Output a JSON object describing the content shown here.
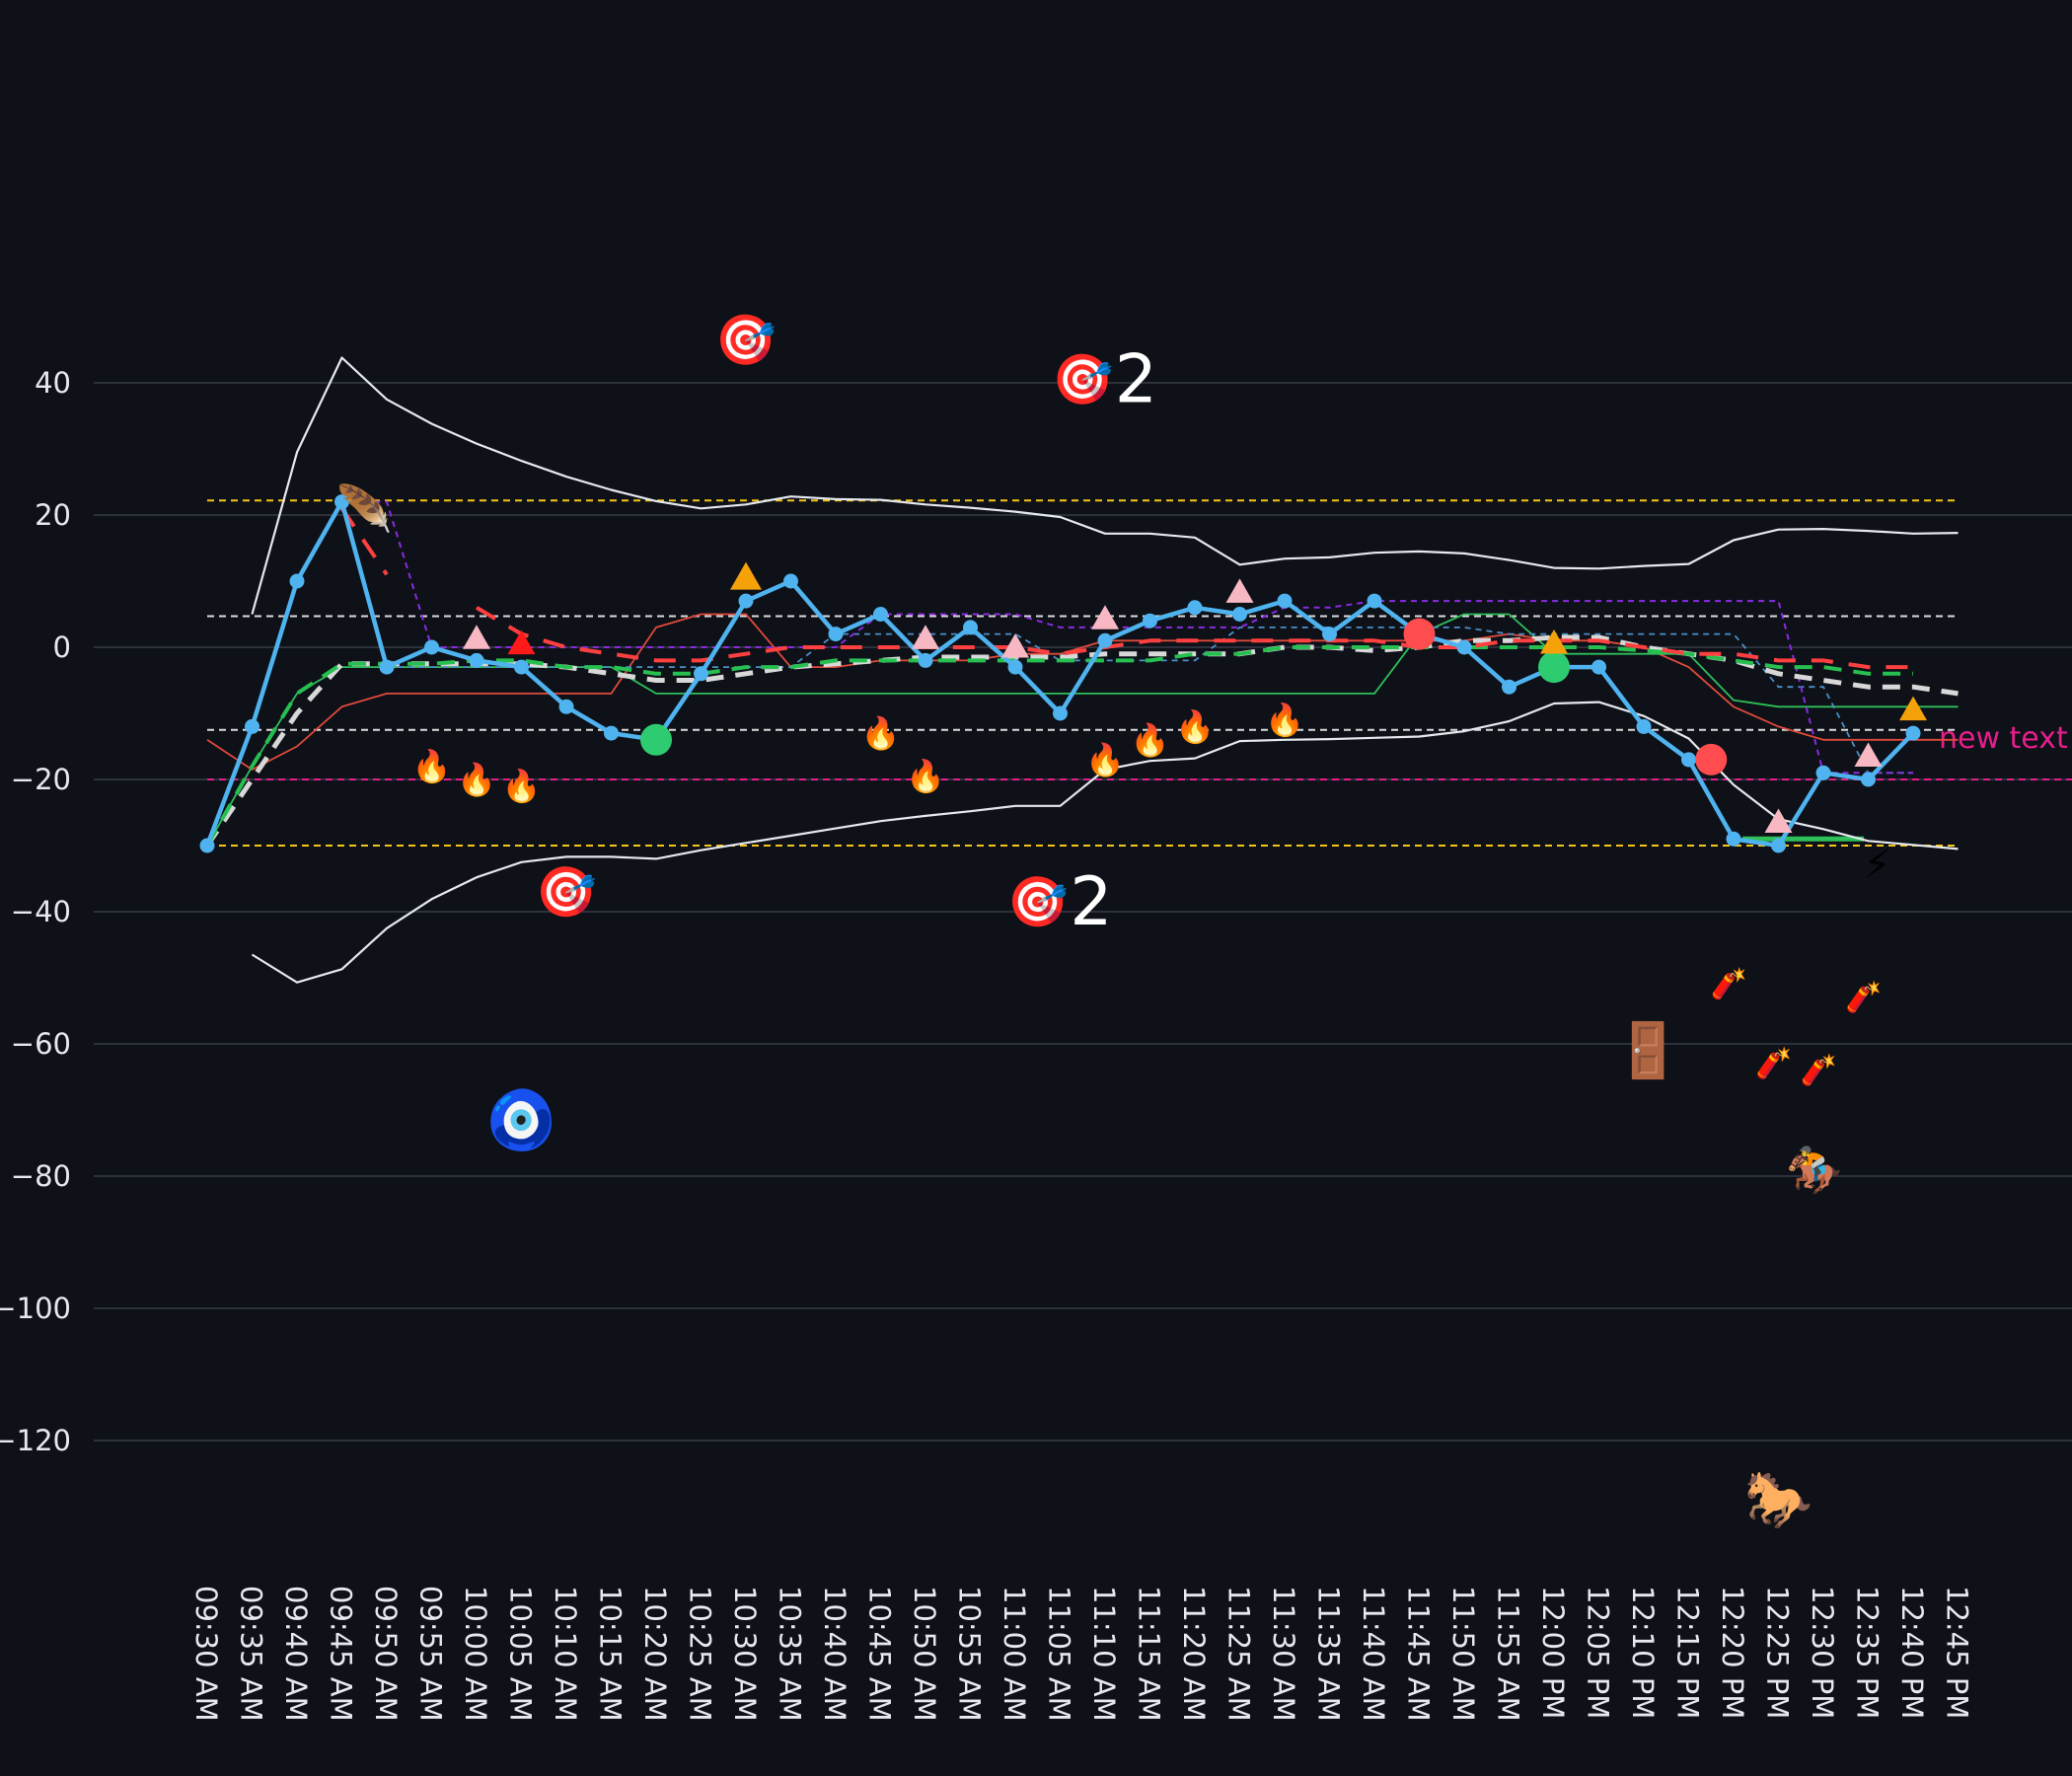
{
  "chart_data": {
    "type": "line",
    "title": "",
    "xlabel": "",
    "ylabel": "",
    "ylim": [
      -140,
      60
    ],
    "yticks": [
      40,
      20,
      0,
      -20,
      -40,
      -60,
      -80,
      -100,
      -120
    ],
    "ytick_labels": [
      "40",
      "20",
      "0",
      "−20",
      "−40",
      "−60",
      "−80",
      "−100",
      "−120"
    ],
    "grid": "horizontal",
    "categories": [
      "09:30 AM",
      "09:35 AM",
      "09:40 AM",
      "09:45 AM",
      "09:50 AM",
      "09:55 AM",
      "10:00 AM",
      "10:05 AM",
      "10:10 AM",
      "10:15 AM",
      "10:20 AM",
      "10:25 AM",
      "10:30 AM",
      "10:35 AM",
      "10:40 AM",
      "10:45 AM",
      "10:50 AM",
      "10:55 AM",
      "11:00 AM",
      "11:05 AM",
      "11:10 AM",
      "11:15 AM",
      "11:20 AM",
      "11:25 AM",
      "11:30 AM",
      "11:35 AM",
      "11:40 AM",
      "11:45 AM",
      "11:50 AM",
      "11:55 AM",
      "12:00 PM",
      "12:05 PM",
      "12:10 PM",
      "12:15 PM",
      "12:20 PM",
      "12:25 PM",
      "12:30 PM",
      "12:35 PM",
      "12:40 PM",
      "12:45 PM"
    ],
    "series": [
      {
        "key": "price",
        "style": "main",
        "color": "#4fb3f0",
        "markers": true,
        "values": [
          -30,
          -12,
          10,
          22,
          -3,
          0,
          -2,
          -3,
          -9,
          -13,
          -14,
          -4,
          7,
          10,
          2,
          5,
          -2,
          3,
          -3,
          -10,
          1,
          4,
          6,
          5,
          7,
          2,
          7,
          2,
          0,
          -6,
          -3,
          -3,
          -12,
          -17,
          -29,
          -30,
          -19,
          -20,
          -13,
          null
        ]
      },
      {
        "key": "upper-band",
        "style": "thin-white",
        "color": "#e6e9ef",
        "values": [
          null,
          5,
          29.5,
          43.8,
          37.5,
          33.8,
          30.8,
          28.2,
          25.8,
          23.8,
          22.1,
          21,
          21.6,
          22.8,
          22.4,
          22.3,
          21.6,
          21.1,
          20.5,
          19.7,
          17.2,
          17.2,
          16.6,
          12.5,
          13.4,
          13.6,
          14.3,
          14.5,
          14.2,
          13.2,
          12,
          11.9,
          12.3,
          12.6,
          16.2,
          17.8,
          17.9,
          17.6,
          17.2,
          17.3
        ]
      },
      {
        "key": "lower-band",
        "style": "thin-white",
        "color": "#e6e9ef",
        "values": [
          null,
          -46.5,
          -50.7,
          -48.7,
          -42.5,
          -38.1,
          -34.8,
          -32.5,
          -31.7,
          -31.7,
          -32,
          -30.7,
          -29.6,
          -28.5,
          -27.4,
          -26.3,
          -25.5,
          -24.8,
          -24,
          -24,
          -18.5,
          -17.2,
          -16.8,
          -14.2,
          -14,
          -13.9,
          -13.7,
          -13.5,
          -12.7,
          -11.2,
          -8.5,
          -8.3,
          -10.4,
          -13.8,
          -20.8,
          -26,
          -27.5,
          -29.3,
          -29.9,
          -30.5
        ]
      },
      {
        "key": "red-step",
        "style": "thin-red",
        "color": "#e04a3c",
        "values": [
          -14,
          -18.5,
          -15,
          -9,
          -7,
          -7,
          -7,
          -7,
          -7,
          -7,
          3,
          5,
          5,
          -3,
          -3,
          -2,
          -2,
          -2,
          -1,
          -1,
          1,
          1,
          1,
          1,
          1,
          1,
          1,
          1,
          1,
          2,
          1,
          1,
          0,
          -3,
          -9,
          -12,
          -14,
          -14,
          -14,
          -14
        ]
      },
      {
        "key": "green-step",
        "style": "thin-green",
        "color": "#2fbf5b",
        "values": [
          -30,
          -18,
          -7,
          -3,
          -3,
          -3,
          -3,
          -3,
          -3,
          -3,
          -7,
          -7,
          -7,
          -7,
          -7,
          -7,
          -7,
          -7,
          -7,
          -7,
          -7,
          -7,
          -7,
          -7,
          -7,
          -7,
          -7,
          2,
          5,
          5,
          -1,
          -1,
          -1,
          -1,
          -8,
          -9,
          -9,
          -9,
          -9,
          -9
        ]
      },
      {
        "key": "blue-dash",
        "style": "blue-dash",
        "color": "#4a90c8",
        "values": [
          null,
          null,
          null,
          null,
          -3,
          -3,
          -3,
          -3,
          -3,
          -3,
          -3,
          -3,
          -3,
          -3,
          2,
          2,
          2,
          2,
          2,
          -2,
          -2,
          -2,
          -2,
          3,
          3,
          3,
          3,
          3,
          3,
          2,
          2,
          2,
          2,
          2,
          2,
          -6,
          -6,
          -19,
          -19,
          null
        ]
      },
      {
        "key": "purple-dash",
        "style": "purple-dash",
        "color": "#8a2be2",
        "values": [
          null,
          null,
          null,
          22,
          22,
          0,
          0,
          0,
          0,
          0,
          0,
          0,
          0,
          0,
          0,
          5,
          5,
          5,
          5,
          3,
          3,
          3,
          3,
          3,
          6,
          6,
          7,
          7,
          7,
          7,
          7,
          7,
          7,
          7,
          7,
          7,
          -19,
          -19,
          -19,
          null
        ]
      },
      {
        "key": "white-dash",
        "style": "white-dash",
        "color": "#d8d8d8",
        "values": [
          -30,
          -20,
          -10,
          -2.5,
          -2.5,
          -2.5,
          -2.5,
          -2.5,
          -3,
          -4,
          -5,
          -5,
          -4,
          -3,
          -2.5,
          -2,
          -1.5,
          -1.5,
          -1.5,
          -1.5,
          -1,
          -1,
          -1,
          -1,
          0,
          0,
          -0.5,
          0,
          1,
          1,
          1.5,
          1.5,
          0,
          -1,
          -2,
          -4,
          -5,
          -6,
          -6,
          -7
        ]
      },
      {
        "key": "green-dash",
        "style": "green-dash",
        "color": "#27c050",
        "values": [
          -30,
          -18,
          -7,
          -2.5,
          -2.5,
          -2.5,
          -2,
          -2,
          -3,
          -3,
          -4,
          -4,
          -3,
          -3,
          -2,
          -2,
          -2,
          -2,
          -2,
          -2,
          -2,
          -2,
          -1,
          -1,
          0,
          0,
          0,
          0,
          0,
          0,
          0,
          0,
          -0.5,
          -1,
          -2,
          -3,
          -3,
          -4,
          -4,
          null
        ]
      },
      {
        "key": "red-dash",
        "style": "red-dash",
        "color": "#ff4040",
        "values": [
          null,
          null,
          null,
          21,
          11,
          null,
          6,
          2,
          0,
          -1,
          -2,
          -2,
          -1,
          0,
          0,
          0,
          0,
          0,
          0,
          -1,
          0,
          1,
          1,
          1,
          1,
          1,
          1,
          0,
          0,
          1,
          1,
          1,
          0,
          -1,
          -1,
          -2,
          -2,
          -3,
          -3,
          null
        ]
      }
    ],
    "hlines": [
      {
        "y": 22.2,
        "color": "#f5c518",
        "style": "dash"
      },
      {
        "y": 4.7,
        "color": "#dcdcdc",
        "style": "dash"
      },
      {
        "y": -12.5,
        "color": "#dcdcdc",
        "style": "dash"
      },
      {
        "y": -20,
        "color": "#e61e8c",
        "style": "dash",
        "label": "new text"
      },
      {
        "y": -30,
        "color": "#f5c518",
        "style": "dash"
      }
    ],
    "hsegments": [
      {
        "x0": 34.2,
        "x1": 36.9,
        "y": -29,
        "color": "#2fbf5b"
      }
    ],
    "markers": [
      {
        "x": 10,
        "y": -14,
        "shape": "circle",
        "color": "#2ecc71",
        "r": 16
      },
      {
        "x": 27,
        "y": 2,
        "shape": "circle",
        "color": "#ff4d4f",
        "r": 16
      },
      {
        "x": 30,
        "y": -3,
        "shape": "circle",
        "color": "#2ecc71",
        "r": 16
      },
      {
        "x": 33.5,
        "y": -17,
        "shape": "circle",
        "color": "#ff4d4f",
        "r": 16
      },
      {
        "x": 6,
        "y": 1.3,
        "shape": "triangle-up",
        "color": "#f7b8c4",
        "s": 14
      },
      {
        "x": 7,
        "y": 0.5,
        "shape": "triangle-up",
        "color": "#ff1a1a",
        "s": 14
      },
      {
        "x": 12,
        "y": 10.5,
        "shape": "triangle-up",
        "color": "#f5a10a",
        "s": 16
      },
      {
        "x": 16,
        "y": 1.3,
        "shape": "triangle-up",
        "color": "#f7b8c4",
        "s": 14
      },
      {
        "x": 18,
        "y": 0,
        "shape": "triangle-up",
        "color": "#f7b8c4",
        "s": 14
      },
      {
        "x": 20,
        "y": 4.3,
        "shape": "triangle-up",
        "color": "#f7b8c4",
        "s": 14
      },
      {
        "x": 23,
        "y": 8.3,
        "shape": "triangle-up",
        "color": "#f7b8c4",
        "s": 14
      },
      {
        "x": 30,
        "y": 0.6,
        "shape": "triangle-up",
        "color": "#f5a10a",
        "s": 14
      },
      {
        "x": 35,
        "y": -26.5,
        "shape": "triangle-up",
        "color": "#f7b8c4",
        "s": 14
      },
      {
        "x": 37,
        "y": -16.5,
        "shape": "triangle-up",
        "color": "#f7b8c4",
        "s": 14
      },
      {
        "x": 38,
        "y": -9.5,
        "shape": "triangle-up",
        "color": "#f5a10a",
        "s": 14
      }
    ],
    "annotations": [
      {
        "x": 3.5,
        "y": 21,
        "icon": "feather",
        "glyph": "🪶",
        "size": 46
      },
      {
        "x": 12,
        "y": 46.5,
        "icon": "direct-hit",
        "glyph": "🎯",
        "size": 50
      },
      {
        "x": 19.5,
        "y": 40.5,
        "icon": "direct-hit",
        "glyph": "🎯",
        "size": 50,
        "count": "2"
      },
      {
        "x": 8,
        "y": -37,
        "icon": "direct-hit",
        "glyph": "🎯",
        "size": 50
      },
      {
        "x": 18.5,
        "y": -38.5,
        "icon": "direct-hit",
        "glyph": "🎯",
        "size": 50,
        "count": "2"
      },
      {
        "x": 5,
        "y": -18,
        "icon": "fire",
        "glyph": "🔥",
        "size": 32
      },
      {
        "x": 6,
        "y": -20,
        "icon": "fire",
        "glyph": "🔥",
        "size": 32
      },
      {
        "x": 7,
        "y": -21,
        "icon": "fire",
        "glyph": "🔥",
        "size": 32
      },
      {
        "x": 15,
        "y": -13,
        "icon": "fire",
        "glyph": "🔥",
        "size": 32
      },
      {
        "x": 16,
        "y": -19.5,
        "icon": "fire",
        "glyph": "🔥",
        "size": 32
      },
      {
        "x": 20,
        "y": -17,
        "icon": "fire",
        "glyph": "🔥",
        "size": 32
      },
      {
        "x": 21,
        "y": -14,
        "icon": "fire",
        "glyph": "🔥",
        "size": 32
      },
      {
        "x": 22,
        "y": -12,
        "icon": "fire",
        "glyph": "🔥",
        "size": 32
      },
      {
        "x": 24,
        "y": -11,
        "icon": "fire",
        "glyph": "🔥",
        "size": 32
      },
      {
        "x": 7,
        "y": -71.5,
        "icon": "nazar-amulet",
        "glyph": "🧿",
        "size": 58
      },
      {
        "x": 32.1,
        "y": -61,
        "icon": "door",
        "glyph": "🚪",
        "size": 54
      },
      {
        "x": 33.9,
        "y": -51,
        "icon": "firecracker",
        "glyph": "🧨",
        "size": 30
      },
      {
        "x": 34.9,
        "y": -63,
        "icon": "firecracker",
        "glyph": "🧨",
        "size": 30
      },
      {
        "x": 35.9,
        "y": -64,
        "icon": "firecracker",
        "glyph": "🧨",
        "size": 30
      },
      {
        "x": 36.9,
        "y": -53,
        "icon": "firecracker",
        "glyph": "🧨",
        "size": 30
      },
      {
        "x": 37.2,
        "y": -33,
        "icon": "high-voltage",
        "glyph": "⚡",
        "size": 40
      },
      {
        "x": 35.8,
        "y": -79,
        "icon": "horse-racing",
        "glyph": "🏇",
        "size": 46
      },
      {
        "x": 35,
        "y": -129,
        "icon": "horse",
        "glyph": "🐎",
        "size": 56
      }
    ]
  }
}
